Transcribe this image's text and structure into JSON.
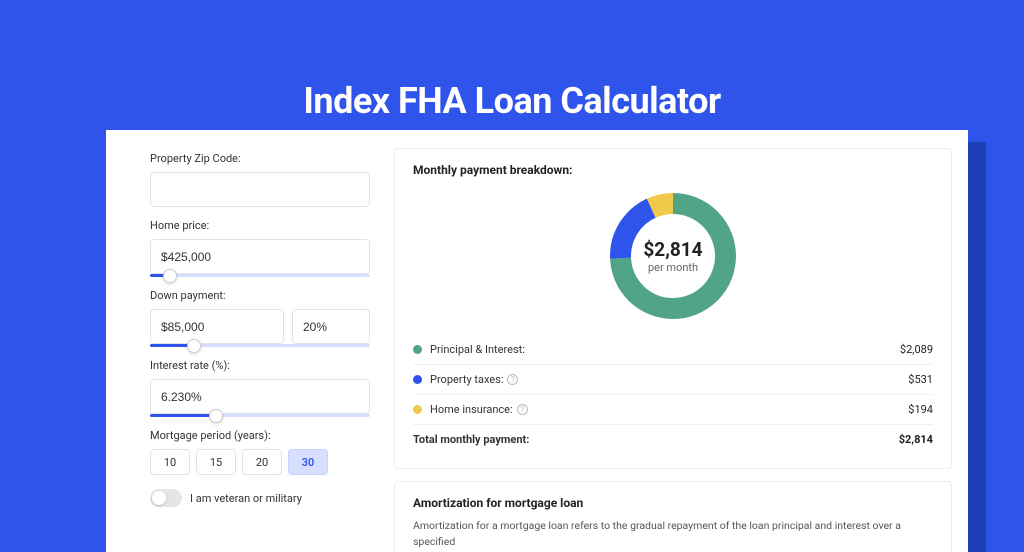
{
  "page": {
    "title": "Index FHA Loan Calculator",
    "background_color": "#2f54eb"
  },
  "form": {
    "zip_label": "Property Zip Code:",
    "zip_value": "",
    "home_price_label": "Home price:",
    "home_price_value": "$425,000",
    "home_price_slider_pct": 9,
    "down_payment_label": "Down payment:",
    "down_payment_value": "$85,000",
    "down_payment_pct_value": "20%",
    "down_payment_slider_pct": 20,
    "interest_label": "Interest rate (%):",
    "interest_value": "6.230%",
    "interest_slider_pct": 30,
    "period_label": "Mortgage period (years):",
    "period_options": [
      "10",
      "15",
      "20",
      "30"
    ],
    "period_selected": "30",
    "veteran_label": "I am veteran or military",
    "veteran_on": false
  },
  "breakdown": {
    "title": "Monthly payment breakdown:",
    "donut": {
      "total_label": "$2,814",
      "sub_label": "per month",
      "segments": [
        {
          "label": "Principal & Interest:",
          "value": "$2,089",
          "amount": 2089,
          "color": "#52a487"
        },
        {
          "label": "Property taxes:",
          "value": "$531",
          "amount": 531,
          "color": "#2f54eb",
          "info": true
        },
        {
          "label": "Home insurance:",
          "value": "$194",
          "amount": 194,
          "color": "#f0c94a",
          "info": true
        }
      ],
      "stroke_width": 20,
      "radius": 50
    },
    "total_row_label": "Total monthly payment:",
    "total_row_value": "$2,814"
  },
  "amortization": {
    "title": "Amortization for mortgage loan",
    "text": "Amortization for a mortgage loan refers to the gradual repayment of the loan principal and interest over a specified"
  }
}
